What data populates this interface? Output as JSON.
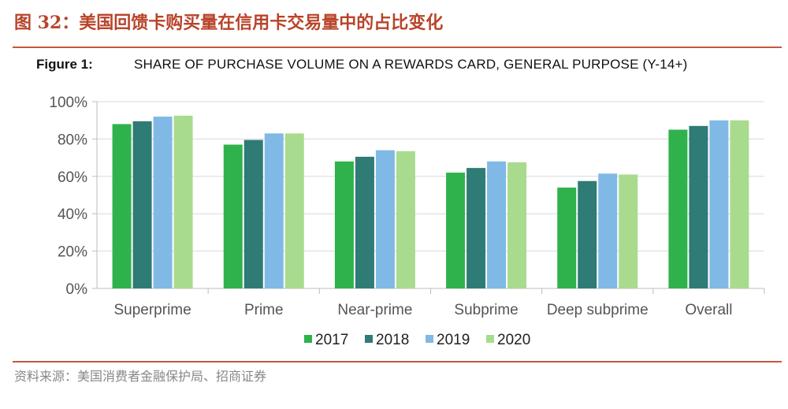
{
  "header": {
    "title": "图 32：美国回馈卡购买量在信用卡交易量中的占比变化"
  },
  "figure": {
    "label": "Figure 1:",
    "title": "SHARE OF PURCHASE VOLUME ON A REWARDS CARD, GENERAL PURPOSE (Y-14+)"
  },
  "footer": {
    "source": "资料来源：美国消费者金融保护局、招商证券"
  },
  "colors": {
    "2017": "#2fb24c",
    "2018": "#2f7b76",
    "2019": "#80b9e6",
    "2020": "#a9db8f",
    "header": "#b8442a",
    "rule": "#c9563b"
  },
  "chart_data": {
    "type": "bar",
    "title": "SHARE OF PURCHASE VOLUME ON A REWARDS CARD, GENERAL PURPOSE (Y-14+)",
    "categories": [
      "Superprime",
      "Prime",
      "Near-prime",
      "Subprime",
      "Deep subprime",
      "Overall"
    ],
    "series": [
      {
        "name": "2017",
        "values": [
          88,
          77,
          68,
          62,
          54,
          85
        ]
      },
      {
        "name": "2018",
        "values": [
          89.5,
          79.5,
          70.5,
          64.5,
          57.5,
          87
        ]
      },
      {
        "name": "2019",
        "values": [
          92,
          83,
          74,
          68,
          61.5,
          90
        ]
      },
      {
        "name": "2020",
        "values": [
          92.5,
          83,
          73.5,
          67.5,
          61,
          90
        ]
      }
    ],
    "yticks": [
      "0%",
      "20%",
      "40%",
      "60%",
      "80%",
      "100%"
    ],
    "ylim": [
      0,
      100
    ],
    "xlabel": "",
    "ylabel": "",
    "grid": true,
    "legend": "bottom"
  }
}
